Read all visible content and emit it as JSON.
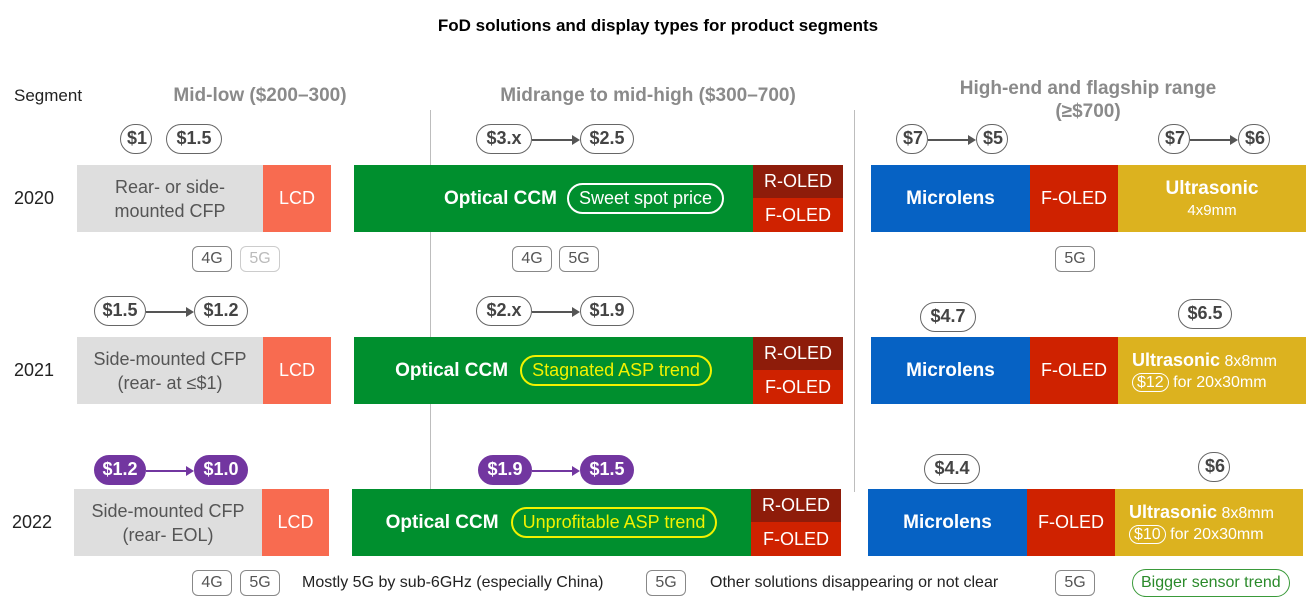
{
  "title": "FoD solutions and display types for product segments",
  "segment_label": "Segment",
  "segments": {
    "low": "Mid-low ($200–300)",
    "mid": "Midrange to mid-high ($300–700)",
    "high_line1": "High-end and flagship range",
    "high_line2": "(≥$700)"
  },
  "years": [
    "2020",
    "2021",
    "2022"
  ],
  "row2020": {
    "low_prices": [
      "$1",
      "$1.5"
    ],
    "cfp": [
      "Rear- or side-",
      "mounted CFP"
    ],
    "lcd": "LCD",
    "mid_price_from": "$3.x",
    "mid_price_to": "$2.5",
    "ccm": "Optical CCM",
    "ccm_note": "Sweet spot price",
    "roled": "R-OLED",
    "foled": "F-OLED",
    "micro_price_from": "$7",
    "micro_price_to": "$5",
    "ultra_price_from": "$7",
    "ultra_price_to": "$6",
    "micro": "Microlens",
    "foled_high": "F-OLED",
    "ultra": "Ultrasonic",
    "ultra_sub": "4x9mm",
    "tags_low": [
      "4G",
      "5G"
    ],
    "tags_mid": [
      "4G",
      "5G"
    ],
    "tags_high": [
      "5G"
    ]
  },
  "row2021": {
    "low_price_from": "$1.5",
    "low_price_to": "$1.2",
    "cfp": [
      "Side-mounted CFP",
      "(rear- at ≤$1)"
    ],
    "lcd": "LCD",
    "mid_price_from": "$2.x",
    "mid_price_to": "$1.9",
    "ccm": "Optical CCM",
    "ccm_note": "Stagnated ASP trend",
    "roled": "R-OLED",
    "foled": "F-OLED",
    "micro_price": "$4.7",
    "ultra_price": "$6.5",
    "micro": "Microlens",
    "foled_high": "F-OLED",
    "ultra": "Ultrasonic",
    "ultra_size": "8x8mm",
    "ultra_alt_price": "$12",
    "ultra_alt": "for 20x30mm"
  },
  "row2022": {
    "low_price_from": "$1.2",
    "low_price_to": "$1.0",
    "cfp": [
      "Side-mounted CFP",
      "(rear- EOL)"
    ],
    "lcd": "LCD",
    "mid_price_from": "$1.9",
    "mid_price_to": "$1.5",
    "ccm": "Optical CCM",
    "ccm_note": "Unprofitable ASP trend",
    "roled": "R-OLED",
    "foled": "F-OLED",
    "micro_price": "$4.4",
    "ultra_price": "$6",
    "micro": "Microlens",
    "foled_high": "F-OLED",
    "ultra": "Ultrasonic",
    "ultra_size": "8x8mm",
    "ultra_alt_price": "$10",
    "ultra_alt": "for 20x30mm"
  },
  "footer": {
    "tags_low": [
      "4G",
      "5G"
    ],
    "note_low": "Mostly 5G by sub-6GHz (especially China)",
    "tag_mid": "5G",
    "note_mid": "Other solutions disappearing or not clear",
    "tag_high": "5G",
    "trend_high": "Bigger sensor trend"
  },
  "colors": {
    "cfp": "#dedede",
    "lcd": "#f86b50",
    "ccm": "#008f2e",
    "roled": "#8e1c0a",
    "foled": "#cf2200",
    "microlens": "#0662c4",
    "ultrasonic": "#dcb21f",
    "price_2022": "#7236a0"
  }
}
